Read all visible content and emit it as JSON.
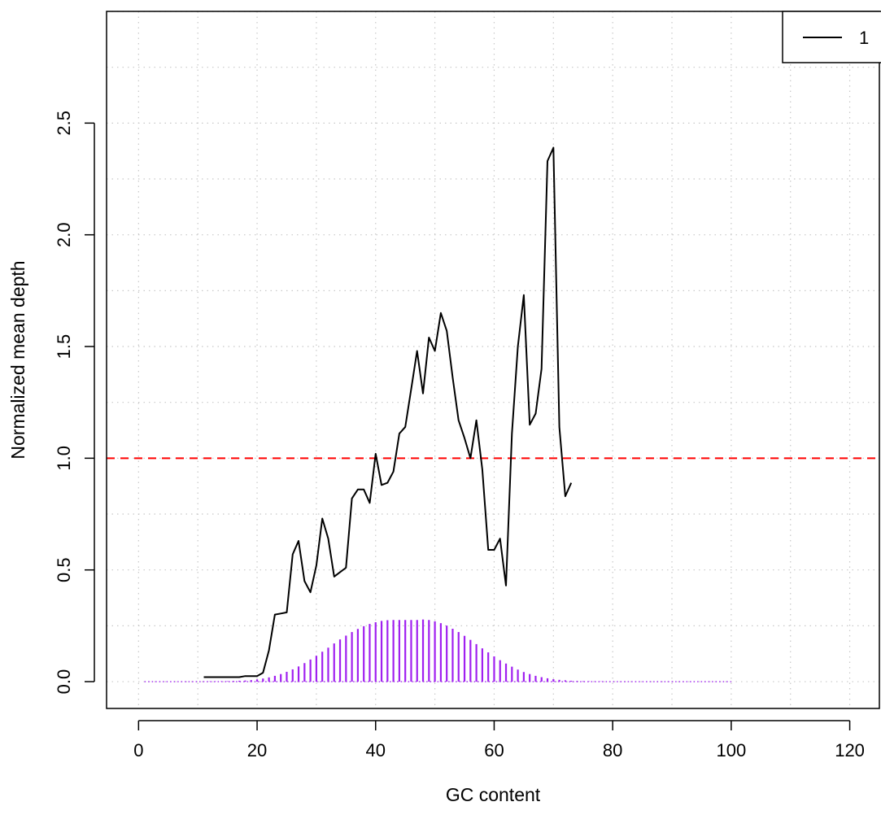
{
  "chart_data": {
    "type": "line",
    "title": "",
    "xlabel": "GC content",
    "ylabel": "Normalized mean depth",
    "xlim": [
      -5.4,
      125
    ],
    "ylim": [
      -0.12,
      3.0
    ],
    "x_ticks": [
      0,
      20,
      40,
      60,
      80,
      100,
      120
    ],
    "x_tick_labels": [
      "0",
      "20",
      "40",
      "60",
      "80",
      "100",
      "120"
    ],
    "y_ticks": [
      0.0,
      0.5,
      1.0,
      1.5,
      2.0,
      2.5
    ],
    "y_tick_labels": [
      "0.0",
      "0.5",
      "1.0",
      "1.5",
      "2.0",
      "2.5"
    ],
    "grid": true,
    "legend_position": "top-right",
    "series": [
      {
        "name": "1",
        "color": "#000000",
        "x": [
          11,
          12,
          13,
          14,
          15,
          16,
          17,
          18,
          19,
          20,
          21,
          22,
          23,
          24,
          25,
          26,
          27,
          28,
          29,
          30,
          31,
          32,
          33,
          34,
          35,
          36,
          37,
          38,
          39,
          40,
          41,
          42,
          43,
          44,
          45,
          46,
          47,
          48,
          49,
          50,
          51,
          52,
          53,
          54,
          55,
          56,
          57,
          58,
          59,
          60,
          61,
          62,
          63,
          64,
          65,
          66,
          67,
          68,
          69,
          70,
          71,
          72,
          73
        ],
        "y": [
          0.02,
          0.02,
          0.02,
          0.02,
          0.02,
          0.02,
          0.02,
          0.025,
          0.025,
          0.025,
          0.04,
          0.14,
          0.3,
          0.305,
          0.31,
          0.57,
          0.63,
          0.45,
          0.4,
          0.52,
          0.73,
          0.64,
          0.47,
          0.49,
          0.51,
          0.82,
          0.86,
          0.86,
          0.8,
          1.02,
          0.88,
          0.89,
          0.94,
          1.11,
          1.14,
          1.31,
          1.48,
          1.29,
          1.54,
          1.48,
          1.65,
          1.57,
          1.36,
          1.17,
          1.09,
          1.0,
          1.17,
          0.95,
          0.59,
          0.59,
          0.64,
          0.43,
          1.11,
          1.5,
          1.73,
          1.15,
          1.2,
          1.4,
          2.33,
          2.39,
          1.14,
          0.83,
          0.89
        ]
      }
    ],
    "reference_line": {
      "y": 1.0,
      "color": "#ff0000",
      "style": "dashed"
    },
    "distribution": {
      "color": "#a020f0",
      "x": [
        1,
        2,
        3,
        4,
        5,
        6,
        7,
        8,
        9,
        10,
        11,
        12,
        13,
        14,
        15,
        16,
        17,
        18,
        19,
        20,
        21,
        22,
        23,
        24,
        25,
        26,
        27,
        28,
        29,
        30,
        31,
        32,
        33,
        34,
        35,
        36,
        37,
        38,
        39,
        40,
        41,
        42,
        43,
        44,
        45,
        46,
        47,
        48,
        49,
        50,
        51,
        52,
        53,
        54,
        55,
        56,
        57,
        58,
        59,
        60,
        61,
        62,
        63,
        64,
        65,
        66,
        67,
        68,
        69,
        70,
        71,
        72,
        73,
        74,
        75,
        76,
        77,
        78,
        79,
        80,
        81,
        82,
        83,
        84,
        85,
        86,
        87,
        88,
        89,
        90,
        91,
        92,
        93,
        94,
        95,
        96,
        97,
        98,
        99,
        100
      ],
      "y": [
        0,
        0,
        0,
        0,
        0,
        0,
        0,
        0,
        0,
        0,
        0.001,
        0.001,
        0.001,
        0.002,
        0.002,
        0.003,
        0.004,
        0.005,
        0.007,
        0.01,
        0.014,
        0.019,
        0.026,
        0.034,
        0.044,
        0.055,
        0.068,
        0.083,
        0.099,
        0.116,
        0.134,
        0.152,
        0.171,
        0.189,
        0.206,
        0.222,
        0.236,
        0.248,
        0.258,
        0.266,
        0.272,
        0.275,
        0.276,
        0.276,
        0.276,
        0.276,
        0.276,
        0.278,
        0.276,
        0.27,
        0.262,
        0.251,
        0.237,
        0.222,
        0.205,
        0.187,
        0.168,
        0.149,
        0.131,
        0.113,
        0.096,
        0.081,
        0.067,
        0.054,
        0.043,
        0.034,
        0.026,
        0.02,
        0.015,
        0.011,
        0.008,
        0.006,
        0.004,
        0.003,
        0.002,
        0.0015,
        0.001,
        0.001,
        0,
        0,
        0,
        0,
        0,
        0,
        0,
        0,
        0,
        0,
        0,
        0,
        0,
        0,
        0,
        0,
        0,
        0,
        0,
        0,
        0,
        0
      ]
    }
  }
}
